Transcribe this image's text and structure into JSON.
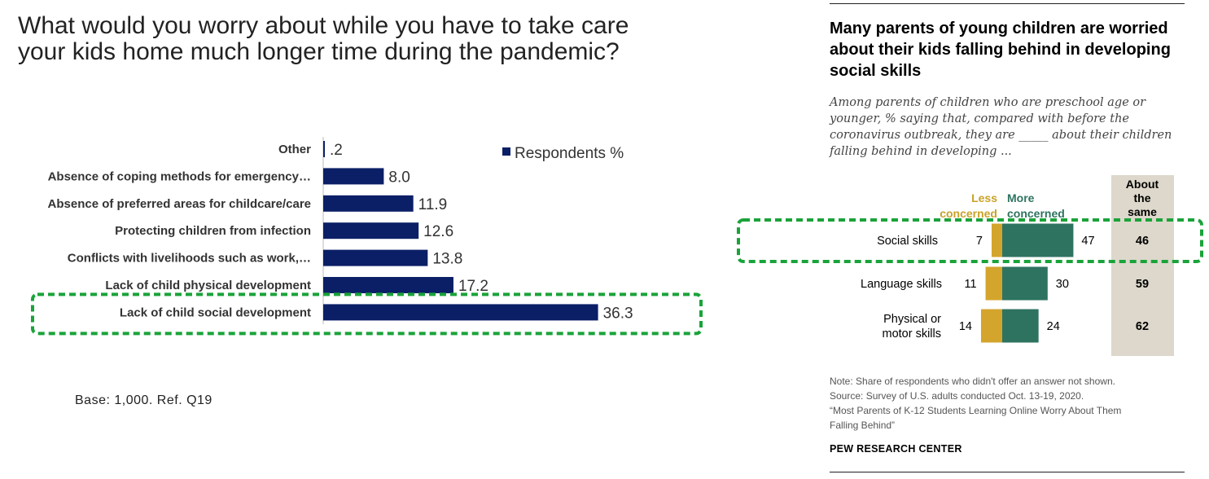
{
  "left": {
    "title": "What would you worry about while you have to take care your kids home much longer time during the pandemic?",
    "legend_label": "Respondents %",
    "base_note": "Base: 1,000. Ref. Q19",
    "colors": {
      "bar": "#0b1f66",
      "highlight": "#1aa33a"
    }
  },
  "right": {
    "title": "Many parents of young children are worried about their kids falling behind in developing social skills",
    "subtitle": "Among parents of children who are preschool age or younger, % saying that, compared with before the coronavirus outbreak, they are _____ about their children falling behind in developing ...",
    "header_less": [
      "Less",
      "concerned"
    ],
    "header_more": [
      "More",
      "concerned"
    ],
    "header_same": [
      "About",
      "the",
      "same"
    ],
    "notes": [
      "Note: Share of respondents who didn't offer an answer not shown.",
      "Source: Survey of U.S. adults conducted Oct. 13-19, 2020.",
      "“Most Parents of K-12 Students Learning Online Worry About Them",
      "Falling Behind”"
    ],
    "org": "PEW RESEARCH CENTER",
    "colors": {
      "less": "#d4a52c",
      "more": "#2e7360",
      "same_bg": "#ddd8cb",
      "less_text": "#c9a227",
      "more_text": "#2e7360",
      "highlight": "#1aa33a"
    }
  },
  "chart_data": [
    {
      "type": "bar",
      "orientation": "horizontal",
      "categories": [
        "Other",
        "Absence of coping methods for emergency…",
        "Absence of preferred areas for childcare/care",
        "Protecting children from infection",
        "Conflicts with livelihoods such as work,…",
        "Lack of child physical development",
        "Lack of child social development"
      ],
      "value_labels": [
        ".2",
        "8.0",
        "11.9",
        "12.6",
        "13.8",
        "17.2",
        "36.3"
      ],
      "series": [
        {
          "name": "Respondents %",
          "values": [
            0.2,
            8.0,
            11.9,
            12.6,
            13.8,
            17.2,
            36.3
          ]
        }
      ],
      "highlighted_category": "Lack of child social development",
      "legend": "right"
    },
    {
      "type": "bar",
      "orientation": "horizontal-diverging",
      "categories": [
        "Social skills",
        "Language skills",
        "Physical or motor skills"
      ],
      "category_lines": [
        [
          "Social skills"
        ],
        [
          "Language skills"
        ],
        [
          "Physical or",
          "motor skills"
        ]
      ],
      "series": [
        {
          "name": "Less concerned",
          "values": [
            7,
            11,
            14
          ]
        },
        {
          "name": "More concerned",
          "values": [
            47,
            30,
            24
          ]
        },
        {
          "name": "About the same",
          "values": [
            46,
            59,
            62
          ]
        }
      ],
      "highlighted_category": "Social skills"
    }
  ]
}
